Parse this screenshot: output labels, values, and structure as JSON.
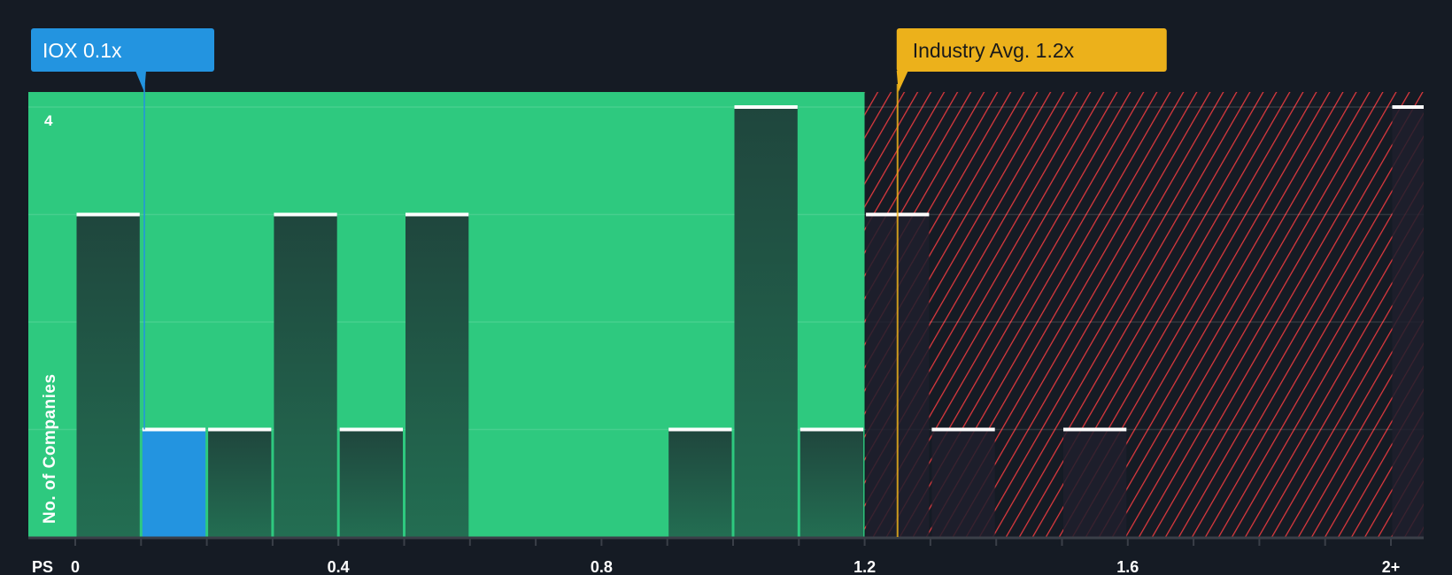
{
  "chart_data": {
    "type": "bar",
    "title": "",
    "xlabel": "PS",
    "ylabel": "No. of Companies",
    "ylim": [
      0,
      4
    ],
    "xlim": [
      0,
      2.05
    ],
    "bin_width": 0.1,
    "y_tick_labels": [
      {
        "value": 4,
        "label": "4"
      }
    ],
    "gridlines_y": [
      1,
      2,
      3,
      4
    ],
    "x_ticks": [
      {
        "value": 0,
        "label": "0"
      },
      {
        "value": 0.4,
        "label": "0.4"
      },
      {
        "value": 0.8,
        "label": "0.8"
      },
      {
        "value": 1.2,
        "label": "1.2"
      },
      {
        "value": 1.6,
        "label": "1.6"
      },
      {
        "value": 2.0,
        "label": "2+"
      }
    ],
    "bins": [
      {
        "start": 0.0,
        "count": 3
      },
      {
        "start": 0.1,
        "count": 1,
        "highlight": true
      },
      {
        "start": 0.2,
        "count": 1
      },
      {
        "start": 0.3,
        "count": 3
      },
      {
        "start": 0.4,
        "count": 1
      },
      {
        "start": 0.5,
        "count": 3
      },
      {
        "start": 0.6,
        "count": 0
      },
      {
        "start": 0.7,
        "count": 0
      },
      {
        "start": 0.8,
        "count": 0
      },
      {
        "start": 0.9,
        "count": 1
      },
      {
        "start": 1.0,
        "count": 4
      },
      {
        "start": 1.1,
        "count": 1
      },
      {
        "start": 1.2,
        "count": 3
      },
      {
        "start": 1.3,
        "count": 1
      },
      {
        "start": 1.4,
        "count": 0
      },
      {
        "start": 1.5,
        "count": 1
      },
      {
        "start": 1.6,
        "count": 0
      },
      {
        "start": 1.7,
        "count": 0
      },
      {
        "start": 1.8,
        "count": 0
      },
      {
        "start": 1.9,
        "count": 0
      },
      {
        "start": 2.0,
        "count": 4
      }
    ],
    "fair_zone_end": 1.2,
    "company": {
      "label": "IOX 0.1x",
      "value": 0.105
    },
    "industry_avg": {
      "label": "Industry Avg. 1.2x",
      "value": 1.25
    },
    "colors": {
      "background": "#151b24",
      "good_zone": "#2ec97f",
      "bad_zone_stripe": "#e0393e",
      "bar": "#1e4a3e",
      "bar_highlight": "#2394e0",
      "bar_cap": "#ffffff",
      "company_label": "#2394e0",
      "industry_label": "#ecb11b"
    }
  }
}
